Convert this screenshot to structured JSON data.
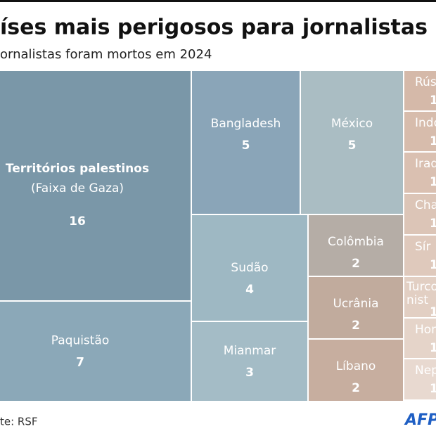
{
  "chart_data": {
    "type": "treemap",
    "title": "íses mais perigosos para jornalistas",
    "subtitle": "ornalistas foram mortos em 2024",
    "source": "te: RSF",
    "logo": "AFP",
    "annotation": "(Faixa de Gaza)",
    "categories": [
      "Territórios palestinos",
      "Paquistão",
      "Bangladesh",
      "México",
      "Sudão",
      "Mianmar",
      "Colômbia",
      "Ucrânia",
      "Líbano",
      "Rús",
      "Indon",
      "Iraq",
      "Cha",
      "Sír",
      [
        "Turco",
        "nist"
      ],
      "Hond",
      "Nep"
    ],
    "values": [
      16,
      7,
      5,
      5,
      4,
      3,
      2,
      2,
      2,
      1,
      1,
      1,
      1,
      1,
      1,
      1,
      1
    ],
    "colors": [
      "#7a97a8",
      "#8ba8b8",
      "#8aa5b8",
      "#aabdc3",
      "#9eb8c3",
      "#a4bcc6",
      "#b5ada6",
      "#c1ab9d",
      "#c7ae9f",
      "#d5b9a9",
      "#d7bcac",
      "#dac0b1",
      "#dcc5b7",
      "#dfc9bc",
      "#e2cfc3",
      "#e5d4c9",
      "#e8d9d0"
    ]
  }
}
